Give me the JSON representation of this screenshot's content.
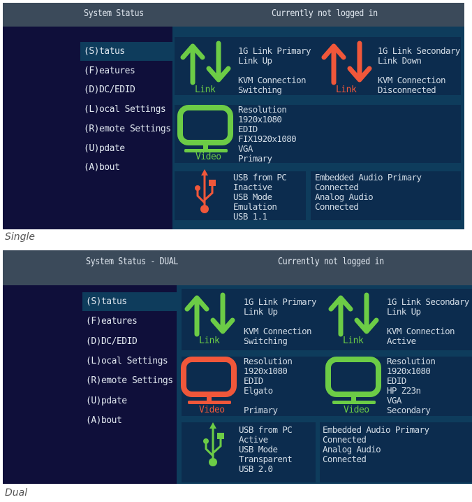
{
  "colors": {
    "ok": "#6ccc46",
    "error": "#f0573a"
  },
  "menu": [
    "(S)tatus",
    "(F)eatures",
    "(D)DC/EDID",
    "(L)ocal  Settings",
    "(R)emote Settings",
    "(U)pdate",
    "(A)bout"
  ],
  "single": {
    "caption": "Single",
    "header": {
      "title": "System Status",
      "login": "Currently not logged in"
    },
    "active_menu": "(S)tatus",
    "link_primary": {
      "icon": "link-arrows-icon",
      "status": "ok",
      "label": "Link",
      "lines": [
        "1G Link Primary",
        "Link Up",
        "",
        "KVM Connection",
        "Switching"
      ]
    },
    "link_secondary": {
      "icon": "link-arrows-icon",
      "status": "error",
      "label": "Link",
      "lines": [
        "1G Link Secondary",
        "Link Down",
        "",
        "KVM Connection",
        "Disconnected"
      ]
    },
    "video_primary": {
      "icon": "monitor-icon",
      "status": "ok",
      "label": "Video",
      "lines": [
        "Resolution",
        "1920x1080",
        "EDID",
        "FIX1920x1080",
        "VGA",
        "Primary"
      ]
    },
    "usb": {
      "icon": "usb-icon",
      "status": "error",
      "lines": [
        "USB from PC",
        "Inactive",
        "USB Mode",
        "Emulation",
        "USB 1.1"
      ]
    },
    "audio": {
      "lines": [
        "Embedded Audio Primary",
        "Connected",
        "Analog Audio",
        "Connected"
      ]
    }
  },
  "dual": {
    "caption": "Dual",
    "header": {
      "title": "System Status - DUAL",
      "login": "Currently not logged in"
    },
    "active_menu": "(S)tatus",
    "link_primary": {
      "icon": "link-arrows-icon",
      "status": "ok",
      "label": "Link",
      "lines": [
        "1G Link Primary",
        "Link Up",
        "",
        "KVM Connection",
        "Switching"
      ]
    },
    "link_secondary": {
      "icon": "link-arrows-icon",
      "status": "ok",
      "label": "Link",
      "lines": [
        "1G Link Secondary",
        "Link Up",
        "",
        "KVM Connection",
        "Active"
      ]
    },
    "video_primary": {
      "icon": "monitor-icon",
      "status": "error",
      "label": "Video",
      "lines": [
        "Resolution",
        "1920x1080",
        "EDID",
        "Elgato",
        "",
        "Primary"
      ]
    },
    "video_secondary": {
      "icon": "monitor-icon",
      "status": "ok",
      "label": "Video",
      "lines": [
        "Resolution",
        "1920x1080",
        "EDID",
        "HP Z23n",
        "VGA",
        "Secondary"
      ]
    },
    "usb": {
      "icon": "usb-icon",
      "status": "ok",
      "lines": [
        "USB from PC",
        "Active",
        "USB Mode",
        "Transparent",
        "USB 2.0"
      ]
    },
    "audio": {
      "lines": [
        "Embedded Audio Primary",
        "Connected",
        "Analog Audio",
        "Connected"
      ]
    }
  }
}
